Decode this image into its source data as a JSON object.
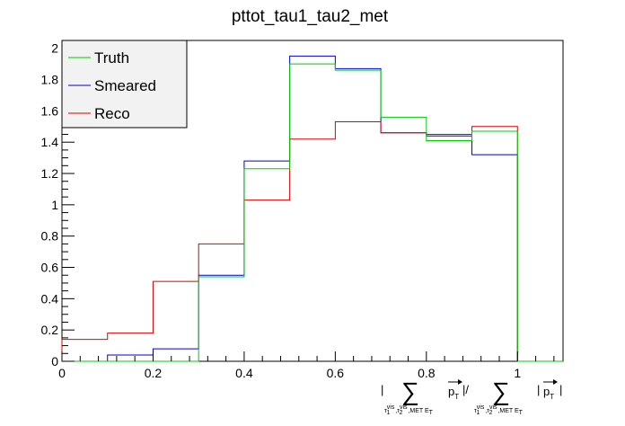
{
  "chart_data": {
    "type": "histogram",
    "title": "pttot_tau1_tau2_met",
    "xlabel": {
      "bar_open": "|",
      "sum1": "∑",
      "sub1": "τ",
      "sub1_sup": "vis",
      "sub1_idx": "1",
      "sub1_mid": ",τ",
      "sub1_sup2": "vis",
      "sub1_idx2": "2",
      "sub1_end": ",MET E",
      "sub1_T": "T",
      "p": "p",
      "p_T": "T",
      "bar_mid": "|/",
      "sum2": "∑",
      "sub2": "τ",
      "sub2_sup": "vis",
      "sub2_idx": "1",
      "sub2_mid": ",τ",
      "sub2_sup2": "vis",
      "sub2_idx2": "2",
      "sub2_end": ",MET E",
      "sub2_T": "T",
      "bar_pre": "|",
      "p2": "p",
      "p2_T": "T",
      "bar_close": "|"
    },
    "ylabel": "",
    "xlim": [
      0,
      1.1
    ],
    "ylim": [
      0,
      2.05
    ],
    "x_ticks": [
      {
        "value": 0,
        "label": "0"
      },
      {
        "value": 0.2,
        "label": "0.2"
      },
      {
        "value": 0.4,
        "label": "0.4"
      },
      {
        "value": 0.6,
        "label": "0.6"
      },
      {
        "value": 0.8,
        "label": "0.8"
      },
      {
        "value": 1,
        "label": "1"
      }
    ],
    "y_ticks": [
      {
        "value": 0,
        "label": "0"
      },
      {
        "value": 0.2,
        "label": "0.2"
      },
      {
        "value": 0.4,
        "label": "0.4"
      },
      {
        "value": 0.6,
        "label": "0.6"
      },
      {
        "value": 0.8,
        "label": "0.8"
      },
      {
        "value": 1,
        "label": "1"
      },
      {
        "value": 1.2,
        "label": "1.2"
      },
      {
        "value": 1.4,
        "label": "1.4"
      },
      {
        "value": 1.6,
        "label": "1.6"
      },
      {
        "value": 1.8,
        "label": "1.8"
      },
      {
        "value": 2,
        "label": "2"
      }
    ],
    "bin_edges": [
      0,
      0.1,
      0.2,
      0.3,
      0.4,
      0.5,
      0.6,
      0.7,
      0.8,
      0.9,
      1.0,
      1.1
    ],
    "series": [
      {
        "name": "Smeared",
        "color": "#0000cc",
        "values": [
          0,
          0.04,
          0.08,
          0.55,
          1.28,
          1.95,
          1.87,
          1.46,
          1.44,
          1.32,
          0
        ]
      },
      {
        "name": "Reco",
        "color": "#dd0000",
        "values": [
          0.14,
          0.18,
          0.51,
          0.75,
          1.03,
          1.42,
          1.53,
          1.46,
          1.45,
          1.5,
          0
        ]
      },
      {
        "name": "Truth",
        "color": "#00cc00",
        "values": [
          0,
          0,
          0,
          0.54,
          1.23,
          1.9,
          1.86,
          1.56,
          1.41,
          1.47,
          0
        ]
      }
    ],
    "legend": {
      "position": "top-left",
      "entries": [
        "Truth",
        "Smeared",
        "Reco"
      ],
      "colors": [
        "#00cc00",
        "#0000cc",
        "#dd0000"
      ]
    },
    "grid": false
  }
}
